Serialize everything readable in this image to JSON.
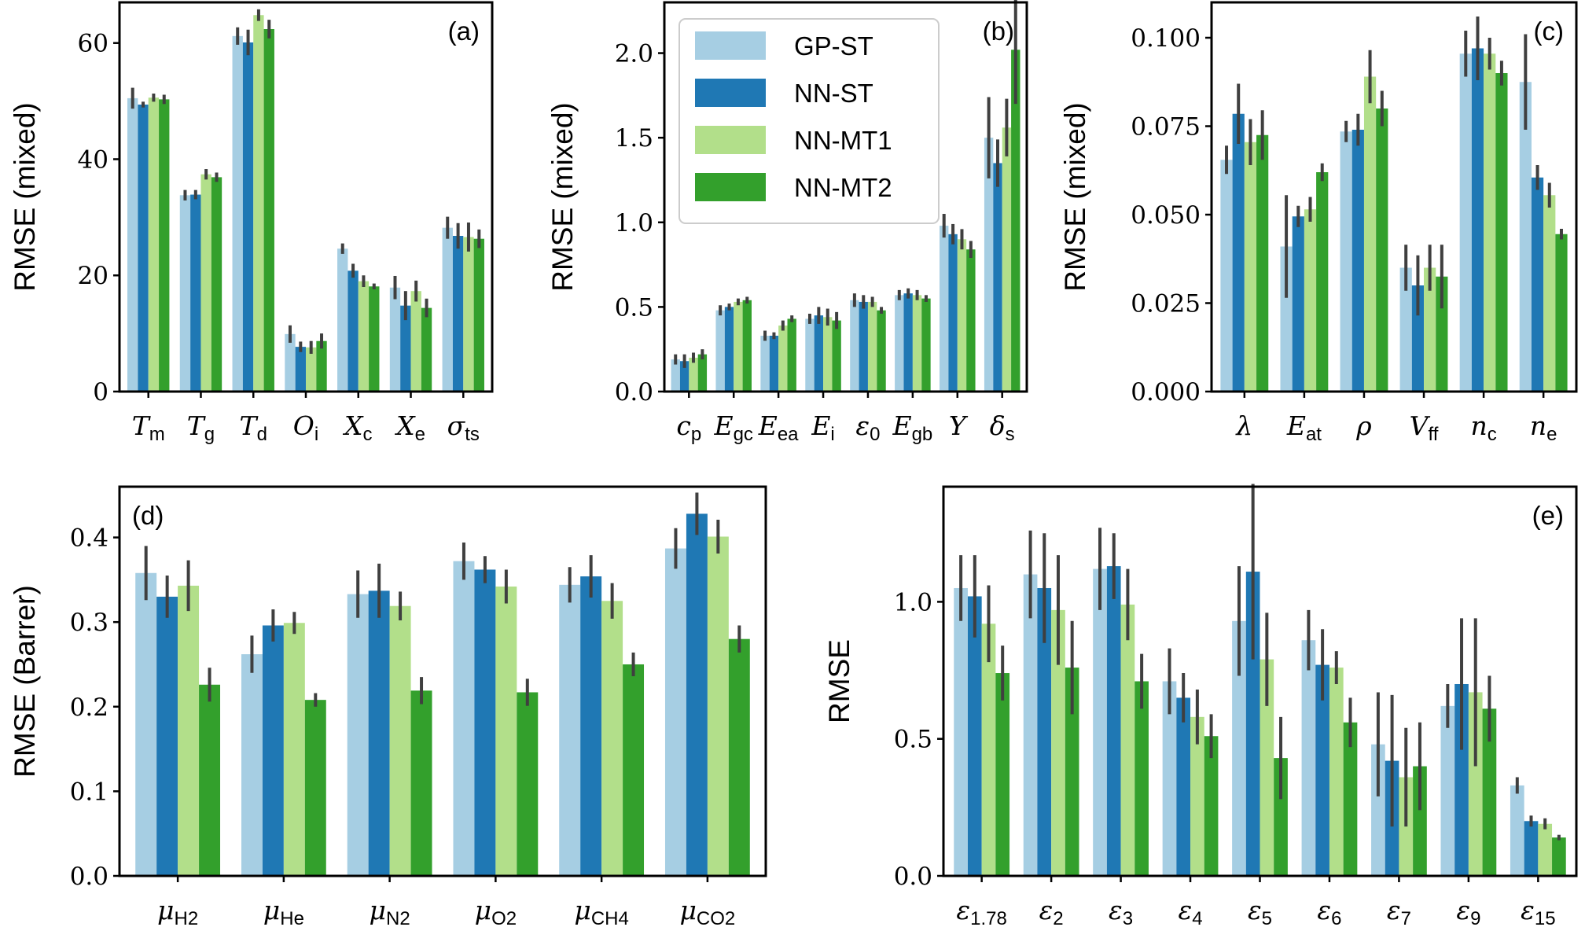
{
  "figure_colors": {
    "frame": "#000000",
    "error_bar": "#3f3f3f"
  },
  "legend": {
    "location": "upper center of panel (b)",
    "entries": [
      {
        "label": "GP-ST",
        "color": "#a6cee3"
      },
      {
        "label": "NN-ST",
        "color": "#1f78b4"
      },
      {
        "label": "NN-MT1",
        "color": "#b2df8a"
      },
      {
        "label": "NN-MT2",
        "color": "#33a02c"
      }
    ]
  },
  "chart_data": [
    {
      "panel": "(a)",
      "type": "bar",
      "ylabel": "RMSE (mixed)",
      "ylim": [
        0,
        67
      ],
      "yticks": [
        0,
        20,
        40,
        60
      ],
      "ytick_labels": [
        "0",
        "20",
        "40",
        "60"
      ],
      "categories": [
        {
          "base": "T",
          "sub": "m"
        },
        {
          "base": "T",
          "sub": "g"
        },
        {
          "base": "T",
          "sub": "d"
        },
        {
          "base": "O",
          "sub": "i"
        },
        {
          "base": "X",
          "sub": "c"
        },
        {
          "base": "X",
          "sub": "e"
        },
        {
          "base": "σ",
          "sub": "ts"
        }
      ],
      "series": [
        {
          "values": [
            50.5,
            33.8,
            61.2,
            9.9,
            24.6,
            17.9,
            28.2
          ],
          "errors": [
            1.8,
            0.9,
            1.5,
            1.5,
            0.9,
            2.0,
            1.9
          ]
        },
        {
          "values": [
            49.4,
            33.9,
            60.1,
            7.7,
            20.8,
            14.8,
            26.8
          ],
          "errors": [
            0.5,
            0.8,
            2.2,
            0.9,
            1.2,
            2.5,
            2.2
          ]
        },
        {
          "values": [
            50.6,
            37.4,
            64.8,
            7.6,
            19.0,
            17.3,
            26.6
          ],
          "errors": [
            0.7,
            0.9,
            1.0,
            1.1,
            1.0,
            1.8,
            2.5
          ]
        },
        {
          "values": [
            50.3,
            36.9,
            62.4,
            8.7,
            18.1,
            14.4,
            26.3
          ],
          "errors": [
            0.8,
            0.8,
            1.6,
            1.3,
            0.5,
            1.6,
            1.6
          ]
        }
      ]
    },
    {
      "panel": "(b)",
      "type": "bar",
      "ylabel": "RMSE (mixed)",
      "ylim": [
        0,
        2.3
      ],
      "yticks": [
        0,
        0.5,
        1.0,
        1.5,
        2.0
      ],
      "ytick_labels": [
        "0.0",
        "0.5",
        "1.0",
        "1.5",
        "2.0"
      ],
      "categories": [
        {
          "base": "c",
          "sub": "p"
        },
        {
          "base": "E",
          "sub": "gc"
        },
        {
          "base": "E",
          "sub": "ea"
        },
        {
          "base": "E",
          "sub": "i"
        },
        {
          "base": "ε",
          "sub": "0"
        },
        {
          "base": "E",
          "sub": "gb"
        },
        {
          "base": "Y",
          "sub": ""
        },
        {
          "base": "δ",
          "sub": "s"
        }
      ],
      "series": [
        {
          "values": [
            0.19,
            0.48,
            0.33,
            0.43,
            0.54,
            0.57,
            0.98,
            1.5
          ],
          "errors": [
            0.03,
            0.03,
            0.03,
            0.03,
            0.04,
            0.03,
            0.07,
            0.24
          ]
        },
        {
          "values": [
            0.18,
            0.5,
            0.33,
            0.45,
            0.53,
            0.58,
            0.93,
            1.35
          ],
          "errors": [
            0.04,
            0.02,
            0.02,
            0.05,
            0.04,
            0.03,
            0.06,
            0.14
          ]
        },
        {
          "values": [
            0.2,
            0.53,
            0.39,
            0.44,
            0.53,
            0.57,
            0.9,
            1.56
          ],
          "errors": [
            0.03,
            0.02,
            0.03,
            0.05,
            0.03,
            0.03,
            0.06,
            0.17
          ]
        },
        {
          "values": [
            0.22,
            0.54,
            0.43,
            0.42,
            0.48,
            0.55,
            0.84,
            2.02
          ],
          "errors": [
            0.03,
            0.02,
            0.02,
            0.05,
            0.02,
            0.02,
            0.05,
            0.32
          ]
        }
      ]
    },
    {
      "panel": "(c)",
      "type": "bar",
      "ylabel": "RMSE (mixed)",
      "ylim": [
        0,
        0.11
      ],
      "yticks": [
        0,
        0.025,
        0.05,
        0.075,
        0.1
      ],
      "ytick_labels": [
        "0.000",
        "0.025",
        "0.050",
        "0.075",
        "0.100"
      ],
      "categories": [
        {
          "base": "λ",
          "sub": ""
        },
        {
          "base": "E",
          "sub": "at"
        },
        {
          "base": "ρ",
          "sub": ""
        },
        {
          "base": "V",
          "sub": "ff"
        },
        {
          "base": "n",
          "sub": "c"
        },
        {
          "base": "n",
          "sub": "e"
        }
      ],
      "series": [
        {
          "values": [
            0.0655,
            0.041,
            0.0735,
            0.035,
            0.0955,
            0.0875
          ],
          "errors": [
            0.004,
            0.0145,
            0.003,
            0.0065,
            0.0065,
            0.0135
          ]
        },
        {
          "values": [
            0.0785,
            0.0495,
            0.074,
            0.03,
            0.097,
            0.0605
          ],
          "errors": [
            0.0085,
            0.003,
            0.0045,
            0.0085,
            0.009,
            0.0035
          ]
        },
        {
          "values": [
            0.0705,
            0.0515,
            0.089,
            0.035,
            0.0955,
            0.0555
          ],
          "errors": [
            0.0065,
            0.0035,
            0.0075,
            0.0065,
            0.0045,
            0.0035
          ]
        },
        {
          "values": [
            0.0725,
            0.062,
            0.08,
            0.0325,
            0.09,
            0.0445
          ],
          "errors": [
            0.007,
            0.0025,
            0.005,
            0.009,
            0.0035,
            0.0015
          ]
        }
      ]
    },
    {
      "panel": "(d)",
      "type": "bar",
      "ylabel": "RMSE (Barrer)",
      "ylim": [
        0,
        0.46
      ],
      "yticks": [
        0,
        0.1,
        0.2,
        0.3,
        0.4
      ],
      "ytick_labels": [
        "0.0",
        "0.1",
        "0.2",
        "0.3",
        "0.4"
      ],
      "categories": [
        {
          "base": "μ",
          "sub": "H2"
        },
        {
          "base": "μ",
          "sub": "He"
        },
        {
          "base": "μ",
          "sub": "N2"
        },
        {
          "base": "μ",
          "sub": "O2"
        },
        {
          "base": "μ",
          "sub": "CH4"
        },
        {
          "base": "μ",
          "sub": "CO2"
        }
      ],
      "series": [
        {
          "values": [
            0.358,
            0.262,
            0.333,
            0.372,
            0.344,
            0.387
          ],
          "errors": [
            0.032,
            0.022,
            0.028,
            0.022,
            0.021,
            0.024
          ]
        },
        {
          "values": [
            0.33,
            0.296,
            0.337,
            0.362,
            0.354,
            0.428
          ],
          "errors": [
            0.025,
            0.019,
            0.032,
            0.016,
            0.025,
            0.025
          ]
        },
        {
          "values": [
            0.343,
            0.299,
            0.319,
            0.342,
            0.325,
            0.401
          ],
          "errors": [
            0.03,
            0.013,
            0.017,
            0.02,
            0.021,
            0.02
          ]
        },
        {
          "values": [
            0.226,
            0.208,
            0.219,
            0.217,
            0.25,
            0.28
          ],
          "errors": [
            0.02,
            0.008,
            0.016,
            0.016,
            0.014,
            0.016
          ]
        }
      ]
    },
    {
      "panel": "(e)",
      "type": "bar",
      "ylabel": "RMSE",
      "ylim": [
        0,
        1.42
      ],
      "yticks": [
        0,
        0.5,
        1.0
      ],
      "ytick_labels": [
        "0.0",
        "0.5",
        "1.0"
      ],
      "categories": [
        {
          "base": "ε",
          "sub": "1.78"
        },
        {
          "base": "ε",
          "sub": "2"
        },
        {
          "base": "ε",
          "sub": "3"
        },
        {
          "base": "ε",
          "sub": "4"
        },
        {
          "base": "ε",
          "sub": "5"
        },
        {
          "base": "ε",
          "sub": "6"
        },
        {
          "base": "ε",
          "sub": "7"
        },
        {
          "base": "ε",
          "sub": "9"
        },
        {
          "base": "ε",
          "sub": "15"
        }
      ],
      "series": [
        {
          "values": [
            1.05,
            1.1,
            1.12,
            0.71,
            0.93,
            0.86,
            0.48,
            0.62,
            0.33
          ],
          "errors": [
            0.12,
            0.16,
            0.15,
            0.12,
            0.2,
            0.11,
            0.19,
            0.08,
            0.03
          ]
        },
        {
          "values": [
            1.02,
            1.05,
            1.13,
            0.65,
            1.11,
            0.77,
            0.42,
            0.7,
            0.2
          ],
          "errors": [
            0.15,
            0.2,
            0.12,
            0.09,
            0.32,
            0.13,
            0.24,
            0.24,
            0.02
          ]
        },
        {
          "values": [
            0.92,
            0.97,
            0.99,
            0.58,
            0.79,
            0.76,
            0.36,
            0.67,
            0.19
          ],
          "errors": [
            0.14,
            0.2,
            0.13,
            0.1,
            0.17,
            0.06,
            0.18,
            0.27,
            0.02
          ]
        },
        {
          "values": [
            0.74,
            0.76,
            0.71,
            0.51,
            0.43,
            0.56,
            0.4,
            0.61,
            0.14
          ],
          "errors": [
            0.1,
            0.17,
            0.1,
            0.08,
            0.15,
            0.09,
            0.16,
            0.12,
            0.01
          ]
        }
      ]
    }
  ]
}
